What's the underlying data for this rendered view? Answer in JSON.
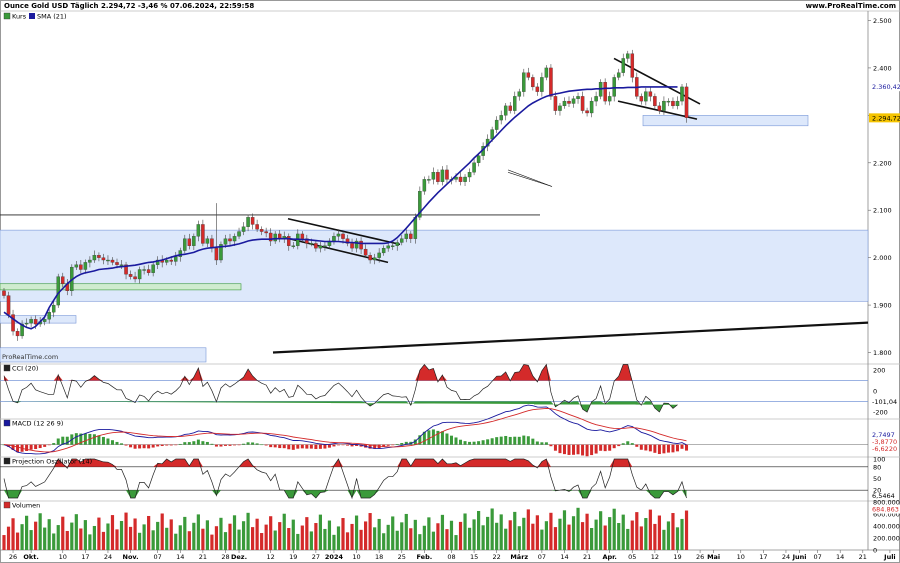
{
  "header": {
    "title": "Ounce Gold USD Täglich 2.294,72 -3,46 % 07.06.2024, 22:59:58",
    "source": "www.ProRealTime.com",
    "watermark": "ProRealTime.com"
  },
  "colors": {
    "up": "#3a9a3a",
    "down": "#d42a2a",
    "sma": "#1a1a9e",
    "zone_fill": "#dde8fb",
    "zone_stroke": "#7a98d8"
  },
  "chart_data": [
    {
      "type": "candlestick",
      "name": "price-panel",
      "legend": [
        "Kurs",
        "SMA (21)"
      ],
      "ylim": [
        1780,
        2520
      ],
      "yticks": [
        {
          "v": 2500,
          "label": "2.500"
        },
        {
          "v": 2400,
          "label": "2.400"
        },
        {
          "v": 2300,
          "label": "2.300"
        },
        {
          "v": 2200,
          "label": "2.200"
        },
        {
          "v": 2100,
          "label": "2.100"
        },
        {
          "v": 2000,
          "label": "2.000"
        },
        {
          "v": 1900,
          "label": "1.900"
        },
        {
          "v": 1800,
          "label": "1.800"
        }
      ],
      "price_labels": [
        {
          "v": 2360.42,
          "label": "2.360,42",
          "color": "#1a1a9e"
        },
        {
          "v": 2294.72,
          "label": "2.294,72",
          "color": "#d4a500"
        }
      ],
      "close": [
        1920,
        1880,
        1845,
        1835,
        1860,
        1862,
        1870,
        1860,
        1865,
        1870,
        1885,
        1900,
        1960,
        1945,
        1930,
        1980,
        1985,
        1975,
        1990,
        1995,
        2005,
        2000,
        1995,
        1995,
        1990,
        1985,
        1985,
        1965,
        1960,
        1955,
        1975,
        1975,
        1968,
        1985,
        1995,
        1990,
        1995,
        1992,
        2002,
        2015,
        2040,
        2025,
        2045,
        2070,
        2030,
        2040,
        2020,
        1995,
        2028,
        2040,
        2035,
        2045,
        2055,
        2065,
        2085,
        2070,
        2060,
        2055,
        2052,
        2035,
        2050,
        2040,
        2045,
        2025,
        2025,
        2050,
        2040,
        2030,
        2030,
        2020,
        2025,
        2025,
        2035,
        2045,
        2050,
        2040,
        2030,
        2020,
        2035,
        2018,
        2005,
        1995,
        2000,
        2010,
        2020,
        2025,
        2025,
        2032,
        2040,
        2050,
        2040,
        2085,
        2140,
        2165,
        2165,
        2180,
        2160,
        2185,
        2165,
        2165,
        2170,
        2160,
        2170,
        2180,
        2200,
        2215,
        2235,
        2250,
        2270,
        2290,
        2300,
        2320,
        2310,
        2340,
        2350,
        2390,
        2380,
        2360,
        2350,
        2380,
        2400,
        2340,
        2310,
        2320,
        2330,
        2325,
        2335,
        2340,
        2310,
        2305,
        2330,
        2340,
        2370,
        2330,
        2340,
        2380,
        2390,
        2420,
        2430,
        2380,
        2340,
        2330,
        2350,
        2340,
        2320,
        2310,
        2330,
        2330,
        2320,
        2330,
        2360,
        2295
      ],
      "sma": [
        1885,
        1878,
        1871,
        1864,
        1858,
        1853,
        1850,
        1855,
        1865,
        1875,
        1895,
        1910,
        1925,
        1935,
        1945,
        1953,
        1960,
        1965,
        1968,
        1970,
        1972,
        1975,
        1976,
        1977,
        1978,
        1980,
        1981,
        1982,
        1983,
        1984,
        1986,
        1988,
        1990,
        1991,
        1993,
        1995,
        1998,
        2001,
        2004,
        2006,
        2007,
        2009,
        2011,
        2015,
        2018,
        2020,
        2021,
        2022,
        2023,
        2024,
        2025,
        2027,
        2029,
        2032,
        2035,
        2037,
        2038,
        2039,
        2039,
        2039,
        2040,
        2040,
        2040,
        2040,
        2039,
        2039,
        2038,
        2038,
        2037,
        2036,
        2035,
        2034,
        2034,
        2034,
        2034,
        2033,
        2032,
        2032,
        2031,
        2030,
        2030,
        2030,
        2030,
        2030,
        2030,
        2031,
        2035,
        2042,
        2052,
        2062,
        2073,
        2084,
        2095,
        2106,
        2117,
        2127,
        2137,
        2146,
        2155,
        2164,
        2173,
        2182,
        2191,
        2200,
        2210,
        2219,
        2228,
        2238,
        2248,
        2258,
        2268,
        2278,
        2287,
        2296,
        2304,
        2312,
        2320,
        2326,
        2331,
        2336,
        2340,
        2343,
        2345,
        2347,
        2349,
        2351,
        2352,
        2353,
        2354,
        2355,
        2355,
        2356,
        2356,
        2357,
        2357,
        2358,
        2358,
        2358,
        2359,
        2359,
        2359,
        2360,
        2360,
        2360,
        2360,
        2360,
        2360,
        2360,
        2360,
        2360
      ]
    },
    {
      "type": "area",
      "name": "cci-panel",
      "legend": [
        "CCI (20)"
      ],
      "ylim": [
        -260,
        260
      ],
      "yticks": [
        {
          "v": 200,
          "label": "200"
        },
        {
          "v": 0,
          "label": "0"
        },
        {
          "v": -200,
          "label": "-200"
        }
      ],
      "value_label": "-101,04"
    },
    {
      "type": "line",
      "name": "macd-panel",
      "legend": [
        "MACD (12 26 9)"
      ],
      "ylim": [
        -20,
        45
      ],
      "value_labels": [
        "2,7497",
        "-3,8770",
        "-6,6220"
      ]
    },
    {
      "type": "area",
      "name": "projection-oscillator-panel",
      "legend": [
        "Projection Oszillator (14)"
      ],
      "ylim": [
        -5,
        105
      ],
      "yticks": [
        {
          "v": 100,
          "label": "100"
        },
        {
          "v": 80,
          "label": "80"
        },
        {
          "v": 50,
          "label": "50"
        },
        {
          "v": 20,
          "label": "20"
        }
      ],
      "value_label": "6,5464"
    },
    {
      "type": "bar",
      "name": "volume-panel",
      "legend": [
        "Volumen"
      ],
      "ylim": [
        0,
        820000
      ],
      "yticks": [
        {
          "v": 800000,
          "label": "800.000"
        },
        {
          "v": 600000,
          "label": "600.000"
        },
        {
          "v": 400000,
          "label": "400.000"
        },
        {
          "v": 200000,
          "label": "200.000"
        },
        {
          "v": 0,
          "label": "0"
        }
      ],
      "value_label": "684.863"
    }
  ],
  "x_axis": [
    {
      "i": 2,
      "label": "26"
    },
    {
      "i": 6,
      "label": "Okt."
    },
    {
      "i": 13,
      "label": "10"
    },
    {
      "i": 18,
      "label": "17"
    },
    {
      "i": 23,
      "label": "24"
    },
    {
      "i": 28,
      "label": "Nov."
    },
    {
      "i": 34,
      "label": "07"
    },
    {
      "i": 39,
      "label": "14"
    },
    {
      "i": 44,
      "label": "21"
    },
    {
      "i": 49,
      "label": "28"
    },
    {
      "i": 52,
      "label": "Dez."
    },
    {
      "i": 59,
      "label": "12"
    },
    {
      "i": 64,
      "label": "19"
    },
    {
      "i": 69,
      "label": "27"
    },
    {
      "i": 73,
      "label": "2024"
    },
    {
      "i": 78,
      "label": "10"
    },
    {
      "i": 83,
      "label": "18"
    },
    {
      "i": 88,
      "label": "25"
    },
    {
      "i": 93,
      "label": "Feb."
    },
    {
      "i": 99,
      "label": "08"
    },
    {
      "i": 104,
      "label": "15"
    },
    {
      "i": 109,
      "label": "22"
    },
    {
      "i": 114,
      "label": "März"
    },
    {
      "i": 119,
      "label": "07"
    },
    {
      "i": 124,
      "label": "14"
    },
    {
      "i": 129,
      "label": "21"
    },
    {
      "i": 134,
      "label": "Apr."
    },
    {
      "i": 139,
      "label": "05"
    },
    {
      "i": 144,
      "label": "12"
    },
    {
      "i": 149,
      "label": "19"
    },
    {
      "i": 154,
      "label": "26"
    },
    {
      "i": 157,
      "label": "Mai"
    },
    {
      "i": 163,
      "label": "10"
    },
    {
      "i": 168,
      "label": "17"
    },
    {
      "i": 173,
      "label": "24"
    },
    {
      "i": 176,
      "label": "Juni"
    },
    {
      "i": 180,
      "label": "07"
    },
    {
      "i": 185,
      "label": "14"
    },
    {
      "i": 190,
      "label": "21"
    },
    {
      "i": 196,
      "label": "Juli"
    }
  ]
}
